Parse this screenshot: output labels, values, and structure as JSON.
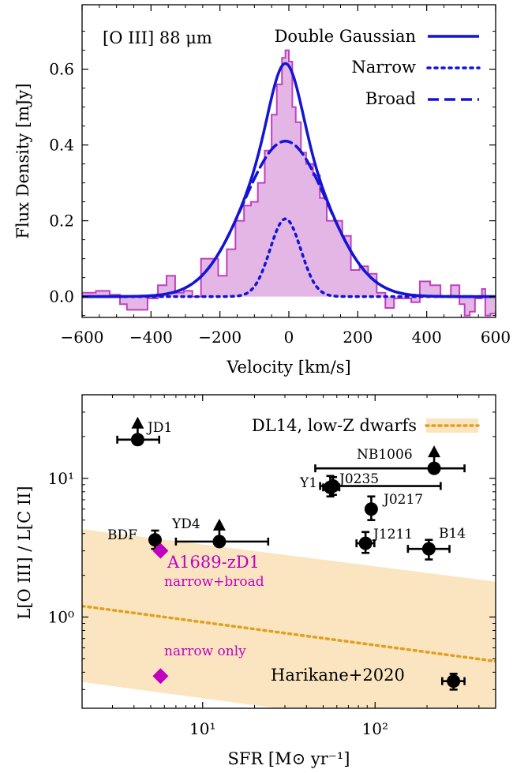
{
  "chart_data": [
    {
      "type": "line",
      "xlabel": "Velocity [km/s]",
      "ylabel": "Flux Density [mJy]",
      "xlim": [
        -600,
        600
      ],
      "ylim": [
        -0.055,
        0.77
      ],
      "xticks": [
        "−600",
        "−400",
        "−200",
        "0",
        "200",
        "400",
        "600"
      ],
      "yticks": [
        "0.0",
        "0.2",
        "0.4",
        "0.6"
      ],
      "annotation": "[O III] 88 μm",
      "legend_position": "top-right",
      "legend": [
        "Double Gaussian",
        "Narrow",
        "Broad"
      ],
      "histogram": {
        "name": "spectrum",
        "color": "#c040c0",
        "bin_edges": [
          -600,
          -560,
          -520,
          -490,
          -470,
          -440,
          -410,
          -380,
          -355,
          -330,
          -305,
          -280,
          -255,
          -230,
          -205,
          -180,
          -155,
          -130,
          -110,
          -90,
          -70,
          -50,
          -35,
          -20,
          -10,
          0,
          10,
          20,
          35,
          50,
          70,
          90,
          110,
          130,
          155,
          180,
          205,
          230,
          255,
          280,
          305,
          330,
          355,
          380,
          410,
          440,
          470,
          495,
          510,
          525,
          540,
          560,
          570,
          585,
          600
        ],
        "values": [
          0.01,
          0.015,
          0.005,
          -0.02,
          -0.035,
          -0.035,
          -0.005,
          0.03,
          0.055,
          0.01,
          0.015,
          0.0,
          0.1,
          0.1,
          0.055,
          0.125,
          0.2,
          0.24,
          0.25,
          0.3,
          0.385,
          0.48,
          0.56,
          0.63,
          0.65,
          0.62,
          0.5,
          0.46,
          0.38,
          0.35,
          0.32,
          0.26,
          0.2,
          0.2,
          0.16,
          0.07,
          0.08,
          0.06,
          0.01,
          -0.03,
          -0.005,
          -0.005,
          -0.015,
          0.04,
          0.03,
          0.0,
          0.03,
          -0.02,
          -0.05,
          -0.04,
          -0.005,
          0.02,
          -0.05,
          -0.045
        ]
      },
      "series": [
        {
          "name": "Double Gaussian",
          "style": "solid",
          "color": "#1414d4",
          "amplitude": 0.615,
          "center": -10
        },
        {
          "name": "Narrow",
          "style": "dotted",
          "color": "#1414d4",
          "amplitude": 0.205,
          "center": -10,
          "fwhm": 105
        },
        {
          "name": "Broad",
          "style": "dashed",
          "color": "#1414d4",
          "amplitude": 0.41,
          "center": -10,
          "fwhm": 285
        }
      ]
    },
    {
      "type": "scatter",
      "xscale": "log",
      "yscale": "log",
      "xlabel": "SFR [M⊙ yr⁻¹]",
      "ylabel": "L[O III] / L[C II]",
      "xlim": [
        2,
        500
      ],
      "ylim": [
        0.22,
        40
      ],
      "xticks": [
        "10¹",
        "10²"
      ],
      "yticks": [
        "10⁰",
        "10¹"
      ],
      "legend_position": "top-right",
      "legend": [
        "DL14, low-Z dwarfs"
      ],
      "band": {
        "name": "DL14, low-Z dwarfs",
        "color": "#f2c06a",
        "line": [
          [
            2,
            1.2
          ],
          [
            500,
            0.48
          ]
        ],
        "upper": [
          [
            2,
            4.3
          ],
          [
            500,
            1.8
          ]
        ],
        "lower": [
          [
            2,
            0.34
          ],
          [
            500,
            0.135
          ]
        ]
      },
      "points": [
        {
          "label": "JD1",
          "x": 4.2,
          "y": 19,
          "xerr": [
            3.2,
            5.6
          ],
          "yerr": null,
          "lower_limit": true
        },
        {
          "label": "NB1006",
          "x": 220,
          "y": 11.8,
          "xerr": [
            45,
            330
          ],
          "yerr": null,
          "lower_limit": true
        },
        {
          "label": "J0235",
          "x": 57,
          "y": 8.8,
          "xerr": [
            48,
            240
          ],
          "yerr": [
            7.6,
            10.2
          ],
          "lower_limit": false
        },
        {
          "label": "Y1",
          "x": 55,
          "y": 8.6,
          "xerr": [
            50,
            62
          ],
          "yerr": [
            7.4,
            10.4
          ],
          "lower_limit": false
        },
        {
          "label": "J0217",
          "x": 95,
          "y": 6.0,
          "xerr": null,
          "yerr": [
            5.0,
            7.4
          ],
          "lower_limit": false
        },
        {
          "label": "J1211",
          "x": 88,
          "y": 3.4,
          "xerr": [
            78,
            99
          ],
          "yerr": [
            2.9,
            4.1
          ],
          "lower_limit": false
        },
        {
          "label": "B14",
          "x": 205,
          "y": 3.1,
          "xerr": [
            155,
            270
          ],
          "yerr": [
            2.6,
            3.6
          ],
          "lower_limit": false
        },
        {
          "label": "BDF",
          "x": 5.3,
          "y": 3.6,
          "xerr": null,
          "yerr": [
            3.1,
            4.2
          ],
          "lower_limit": false
        },
        {
          "label": "YD4",
          "x": 12.5,
          "y": 3.5,
          "xerr": [
            7,
            24
          ],
          "yerr": null,
          "lower_limit": true
        },
        {
          "label": "Harikane+2020",
          "x": 285,
          "y": 0.345,
          "xerr": [
            245,
            330
          ],
          "yerr": [
            0.3,
            0.39
          ],
          "lower_limit": false
        }
      ],
      "highlight": {
        "name": "A1689-zD1",
        "color": "#c000c0",
        "points": [
          {
            "label": "narrow+broad",
            "x": 5.7,
            "y": 3.0
          },
          {
            "label": "narrow only",
            "x": 5.7,
            "y": 0.375
          }
        ]
      }
    }
  ]
}
